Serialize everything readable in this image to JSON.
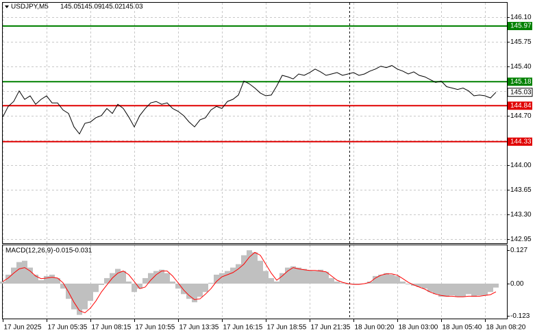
{
  "chart_data": [
    {
      "type": "line",
      "title": "USDJPY,M5",
      "header_values": [
        145.05,
        145.09,
        145.02,
        145.03
      ],
      "color": "#000000",
      "grid": true,
      "x": [
        0,
        4,
        8,
        12,
        16,
        20,
        24,
        28,
        32,
        36,
        40,
        44,
        48,
        52,
        56,
        60,
        64,
        68,
        72,
        76,
        80,
        84,
        88,
        92,
        96,
        100,
        104,
        108,
        112,
        116,
        120,
        124,
        128,
        132,
        136,
        140,
        144,
        148,
        152,
        156,
        160,
        164,
        168,
        172,
        176,
        180,
        184,
        188,
        192,
        196,
        200,
        204,
        208,
        212,
        216,
        220,
        224,
        228,
        232,
        236,
        240,
        244,
        248,
        252,
        256,
        260,
        264,
        268,
        272,
        276,
        280,
        284,
        288,
        292,
        296,
        300,
        304,
        308,
        312,
        316,
        320,
        324,
        328,
        332,
        336,
        340,
        344,
        348,
        352,
        356,
        360
      ],
      "values": [
        144.68,
        144.83,
        144.9,
        145.05,
        144.93,
        144.98,
        144.86,
        144.93,
        144.98,
        144.88,
        144.88,
        144.78,
        144.73,
        144.54,
        144.44,
        144.59,
        144.61,
        144.67,
        144.7,
        144.8,
        144.73,
        144.86,
        144.8,
        144.68,
        144.54,
        144.7,
        144.8,
        144.88,
        144.9,
        144.86,
        144.88,
        144.8,
        144.76,
        144.7,
        144.61,
        144.54,
        144.64,
        144.67,
        144.78,
        144.83,
        144.8,
        144.9,
        144.93,
        144.99,
        145.19,
        145.15,
        145.09,
        145.02,
        144.98,
        144.99,
        145.12,
        145.27,
        145.25,
        145.22,
        145.29,
        145.27,
        145.31,
        145.36,
        145.32,
        145.27,
        145.29,
        145.31,
        145.27,
        145.29,
        145.31,
        145.27,
        145.29,
        145.33,
        145.36,
        145.4,
        145.38,
        145.41,
        145.36,
        145.33,
        145.29,
        145.32,
        145.27,
        145.25,
        145.21,
        145.17,
        145.19,
        145.11,
        145.09,
        145.07,
        145.09,
        145.05,
        144.98,
        144.99,
        144.98,
        144.95,
        145.03
      ],
      "xlim": [
        0,
        368
      ],
      "ylim": [
        142.89,
        146.3
      ],
      "yticks": [
        {
          "value": 146.1,
          "label": "146.10"
        },
        145.75,
        {
          "value": 145.4,
          "label": "145.40"
        },
        145.05,
        {
          "value": 144.7,
          "label": "144.70"
        },
        144.35,
        {
          "value": 144.0,
          "label": "144.00"
        },
        143.65,
        {
          "value": 143.3,
          "label": "143.30"
        },
        142.95
      ],
      "levels": [
        {
          "value": 145.97,
          "color": "#008000"
        },
        {
          "value": 145.18,
          "color": "#008000"
        },
        {
          "value": 144.84,
          "color": "#e00000"
        },
        {
          "value": 144.33,
          "color": "#e00000"
        }
      ],
      "last_price": 145.03
    },
    {
      "type": "macd",
      "title": "MACD(12,26,9)",
      "header_values": [
        -0.015,
        -0.031
      ],
      "grid": true,
      "series": [
        {
          "type": "bar",
          "color": "#c0c0c0",
          "values": [
            0.008,
            0.034,
            0.061,
            0.082,
            0.087,
            0.061,
            0.034,
            0.013,
            0.029,
            0.034,
            0.021,
            -0.019,
            -0.058,
            -0.098,
            -0.119,
            -0.098,
            -0.066,
            -0.032,
            -0.005,
            0.021,
            0.04,
            0.056,
            0.048,
            0.008,
            -0.032,
            -0.019,
            0.021,
            0.04,
            0.048,
            0.053,
            0.04,
            0.008,
            -0.019,
            -0.04,
            -0.058,
            -0.071,
            -0.05,
            -0.032,
            0.003,
            0.034,
            0.04,
            0.048,
            0.061,
            0.074,
            0.108,
            0.127,
            0.119,
            0.087,
            0.048,
            0.021,
            0.008,
            0.04,
            0.061,
            0.066,
            0.061,
            0.056,
            0.05,
            0.048,
            0.053,
            0.045,
            0.021,
            0.008,
            0.003,
            -0.003,
            -0.003,
            -0.003,
            0,
            0.008,
            0.029,
            0.034,
            0.04,
            0.034,
            0.029,
            0.008,
            -0.003,
            -0.008,
            -0.013,
            -0.019,
            -0.032,
            -0.04,
            -0.05,
            -0.05,
            -0.045,
            -0.05,
            -0.05,
            -0.04,
            -0.05,
            -0.045,
            -0.045,
            -0.032,
            -0.015
          ]
        },
        {
          "type": "line",
          "color": "#ff0000",
          "values": [
            0.008,
            0.021,
            0.04,
            0.056,
            0.061,
            0.048,
            0.029,
            0.019,
            0.021,
            0.024,
            0.021,
            0.003,
            -0.032,
            -0.071,
            -0.103,
            -0.111,
            -0.093,
            -0.066,
            -0.032,
            -0.005,
            0.021,
            0.04,
            0.048,
            0.034,
            0.008,
            -0.019,
            -0.013,
            0.013,
            0.034,
            0.048,
            0.048,
            0.029,
            0.003,
            -0.024,
            -0.045,
            -0.061,
            -0.058,
            -0.04,
            -0.019,
            0.008,
            0.026,
            0.034,
            0.042,
            0.056,
            0.074,
            0.101,
            0.119,
            0.108,
            0.074,
            0.04,
            0.013,
            0.029,
            0.048,
            0.061,
            0.056,
            0.053,
            0.05,
            0.05,
            0.048,
            0.045,
            0.029,
            0.013,
            0.005,
            0,
            -0.003,
            -0.003,
            0,
            0.005,
            0.021,
            0.032,
            0.037,
            0.037,
            0.032,
            0.019,
            0.005,
            -0.005,
            -0.013,
            -0.021,
            -0.032,
            -0.04,
            -0.045,
            -0.048,
            -0.048,
            -0.05,
            -0.05,
            -0.048,
            -0.048,
            -0.048,
            -0.045,
            -0.042,
            -0.031
          ]
        }
      ],
      "ylim": [
        -0.133,
        0.146
      ],
      "yticks": [
        0.127,
        {
          "value": 0,
          "label": "0.00"
        },
        -0.123
      ],
      "xticks": [
        {
          "value": 0,
          "label": "17 Jun 2025"
        },
        {
          "value": 32,
          "label": "17 Jun 05:35"
        },
        {
          "value": 64,
          "label": "17 Jun 08:15"
        },
        {
          "value": 96,
          "label": "17 Jun 10:55"
        },
        {
          "value": 128,
          "label": "17 Jun 13:35"
        },
        {
          "value": 160,
          "label": "17 Jun 16:15"
        },
        {
          "value": 192,
          "label": "17 Jun 18:55"
        },
        {
          "value": 224,
          "label": "17 Jun 21:35"
        },
        {
          "value": 256,
          "label": "18 Jun 00:20"
        },
        {
          "value": 288,
          "label": "18 Jun 03:00"
        },
        {
          "value": 320,
          "label": "18 Jun 05:40"
        },
        {
          "value": 352,
          "label": "18 Jun 08:20"
        }
      ]
    }
  ]
}
